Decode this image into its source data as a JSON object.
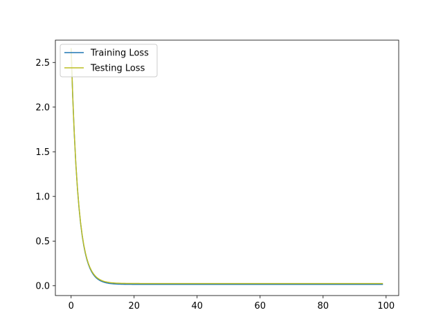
{
  "chart_data": {
    "type": "line",
    "title": "",
    "xlabel": "",
    "ylabel": "",
    "xlim": [
      -5,
      104
    ],
    "ylim": [
      -0.11,
      2.75
    ],
    "xticks": [
      0,
      20,
      40,
      60,
      80,
      100
    ],
    "yticks": [
      0.0,
      0.5,
      1.0,
      1.5,
      2.0,
      2.5
    ],
    "xtick_labels": [
      "0",
      "20",
      "40",
      "60",
      "80",
      "100"
    ],
    "ytick_labels": [
      "0.0",
      "0.5",
      "1.0",
      "1.5",
      "2.0",
      "2.5"
    ],
    "grid": false,
    "legend_position": "top-left",
    "series": [
      {
        "name": "Training Loss",
        "color": "#1f77b4",
        "decay": {
          "start": 2.66,
          "floor": 0.015,
          "rate": 0.45
        },
        "x_range": [
          0,
          99
        ]
      },
      {
        "name": "Testing Loss",
        "color": "#bcbd22",
        "decay": {
          "start": 2.66,
          "floor": 0.025,
          "rate": 0.45
        },
        "x_range": [
          0,
          99
        ]
      }
    ]
  }
}
